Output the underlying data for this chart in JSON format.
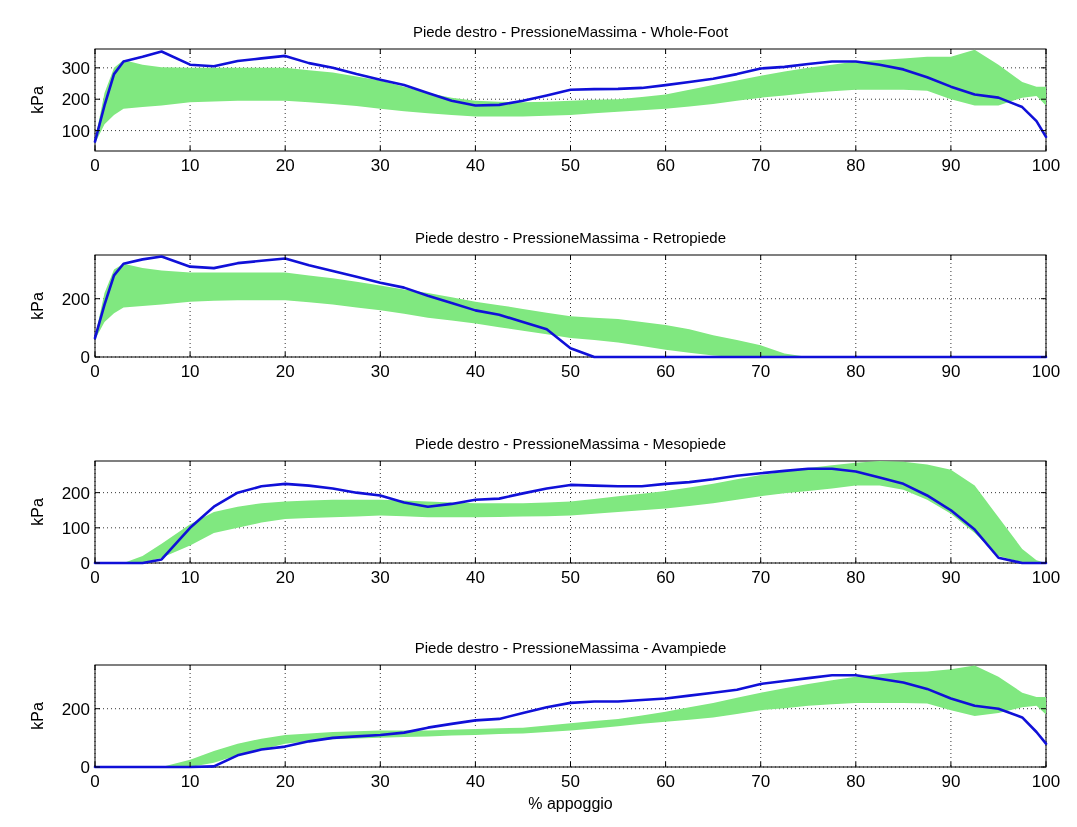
{
  "chart_data": [
    {
      "type": "line",
      "title": "Piede destro - PressioneMassima - Whole-Foot",
      "ylabel": "kPa",
      "xlim": [
        0,
        100
      ],
      "xticks": [
        0,
        10,
        20,
        30,
        40,
        50,
        60,
        70,
        80,
        90,
        100
      ],
      "ylim": [
        35,
        360
      ],
      "yticks": [
        100,
        200,
        300
      ],
      "grid": true,
      "x": [
        0,
        1,
        2,
        3,
        5,
        7,
        10,
        12.5,
        15,
        17.5,
        20,
        22.5,
        25,
        27.5,
        30,
        32.5,
        35,
        37.5,
        40,
        42.5,
        45,
        47.5,
        50,
        52.5,
        55,
        57.5,
        60,
        62.5,
        65,
        67.5,
        70,
        72.5,
        75,
        77.5,
        80,
        82.5,
        85,
        87.5,
        90,
        92.5,
        95,
        97.5,
        99,
        100
      ],
      "series": [
        {
          "color": "#1010d8",
          "values": [
            65,
            180,
            280,
            320,
            335,
            352,
            310,
            305,
            322,
            330,
            338,
            315,
            300,
            280,
            262,
            245,
            220,
            195,
            180,
            182,
            195,
            212,
            230,
            232,
            233,
            236,
            245,
            255,
            265,
            280,
            298,
            303,
            312,
            320,
            320,
            310,
            295,
            270,
            240,
            215,
            205,
            175,
            130,
            80
          ],
          "lower": [
            60,
            120,
            150,
            170,
            175,
            180,
            190,
            193,
            195,
            195,
            195,
            190,
            185,
            178,
            170,
            162,
            155,
            150,
            145,
            145,
            145,
            147,
            150,
            155,
            160,
            165,
            170,
            177,
            185,
            195,
            205,
            212,
            220,
            225,
            230,
            230,
            230,
            227,
            200,
            180,
            180,
            205,
            210,
            180
          ],
          "upper": [
            70,
            220,
            300,
            325,
            310,
            302,
            300,
            300,
            300,
            300,
            300,
            292,
            285,
            272,
            260,
            240,
            220,
            205,
            195,
            192,
            190,
            192,
            195,
            198,
            200,
            207,
            215,
            230,
            245,
            260,
            275,
            288,
            300,
            310,
            320,
            325,
            330,
            335,
            335,
            358,
            310,
            255,
            240,
            240
          ]
        }
      ]
    },
    {
      "type": "line",
      "title": "Piede destro - PressioneMassima - Retropiede",
      "ylabel": "kPa",
      "xlim": [
        0,
        100
      ],
      "xticks": [
        0,
        10,
        20,
        30,
        40,
        50,
        60,
        70,
        80,
        90,
        100
      ],
      "ylim": [
        0,
        350
      ],
      "yticks": [
        0,
        200
      ],
      "grid": true,
      "x": [
        0,
        1,
        2,
        3,
        5,
        7,
        10,
        12.5,
        15,
        17.5,
        20,
        22.5,
        25,
        27.5,
        30,
        32.5,
        35,
        37.5,
        40,
        42.5,
        45,
        47.5,
        50,
        52.5,
        55,
        57.5,
        60,
        62.5,
        65,
        67.5,
        70,
        72.5,
        75,
        77.5,
        80,
        82.5,
        85,
        87.5,
        90,
        92.5,
        95,
        97.5,
        99,
        100
      ],
      "series": [
        {
          "color": "#1010d8",
          "values": [
            65,
            180,
            280,
            320,
            335,
            345,
            310,
            305,
            322,
            330,
            338,
            315,
            295,
            275,
            255,
            238,
            210,
            185,
            160,
            145,
            120,
            95,
            30,
            0,
            0,
            0,
            0,
            0,
            0,
            0,
            0,
            0,
            0,
            0,
            0,
            0,
            0,
            0,
            0,
            0,
            0,
            0,
            0,
            0
          ],
          "lower": [
            60,
            120,
            150,
            170,
            175,
            180,
            190,
            193,
            195,
            195,
            195,
            188,
            180,
            170,
            160,
            148,
            135,
            125,
            115,
            102,
            90,
            78,
            65,
            58,
            50,
            38,
            25,
            15,
            5,
            0,
            0,
            0,
            0,
            0,
            0,
            0,
            0,
            0,
            0,
            0,
            0,
            0,
            0,
            0
          ],
          "upper": [
            70,
            220,
            300,
            320,
            305,
            297,
            290,
            290,
            290,
            290,
            290,
            280,
            270,
            258,
            245,
            232,
            220,
            205,
            190,
            178,
            165,
            152,
            140,
            135,
            130,
            120,
            110,
            95,
            75,
            58,
            40,
            12,
            0,
            0,
            0,
            0,
            0,
            0,
            0,
            0,
            0,
            0,
            0,
            0
          ]
        }
      ]
    },
    {
      "type": "line",
      "title": "Piede destro - PressioneMassima - Mesopiede",
      "ylabel": "kPa",
      "xlim": [
        0,
        100
      ],
      "xticks": [
        0,
        10,
        20,
        30,
        40,
        50,
        60,
        70,
        80,
        90,
        100
      ],
      "ylim": [
        0,
        290
      ],
      "yticks": [
        0,
        100,
        200
      ],
      "grid": true,
      "x": [
        0,
        1,
        2,
        3,
        5,
        7,
        10,
        12.5,
        15,
        17.5,
        20,
        22.5,
        25,
        27.5,
        30,
        32.5,
        35,
        37.5,
        40,
        42.5,
        45,
        47.5,
        50,
        52.5,
        55,
        57.5,
        60,
        62.5,
        65,
        67.5,
        70,
        72.5,
        75,
        77.5,
        80,
        82.5,
        85,
        87.5,
        90,
        92.5,
        95,
        97.5,
        99,
        100
      ],
      "series": [
        {
          "color": "#1010d8",
          "values": [
            0,
            0,
            0,
            0,
            0,
            10,
            100,
            160,
            200,
            218,
            225,
            220,
            212,
            200,
            192,
            172,
            160,
            168,
            180,
            183,
            198,
            212,
            222,
            220,
            218,
            218,
            225,
            230,
            238,
            248,
            255,
            262,
            268,
            268,
            260,
            243,
            225,
            192,
            150,
            95,
            15,
            0,
            0,
            0
          ],
          "lower": [
            0,
            0,
            0,
            0,
            0,
            15,
            50,
            85,
            100,
            115,
            125,
            128,
            130,
            132,
            135,
            133,
            130,
            130,
            130,
            131,
            132,
            133,
            135,
            140,
            145,
            150,
            155,
            162,
            170,
            180,
            190,
            198,
            205,
            212,
            220,
            220,
            208,
            180,
            140,
            85,
            20,
            2,
            0,
            0
          ],
          "upper": [
            0,
            0,
            0,
            0,
            20,
            55,
            110,
            145,
            160,
            170,
            175,
            178,
            180,
            180,
            180,
            178,
            175,
            172,
            170,
            170,
            170,
            172,
            175,
            182,
            190,
            197,
            205,
            215,
            225,
            238,
            250,
            260,
            270,
            278,
            285,
            290,
            288,
            280,
            265,
            220,
            130,
            40,
            8,
            0
          ]
        }
      ]
    },
    {
      "type": "line",
      "title": "Piede destro - PressioneMassima - Avampiede",
      "xlabel": "% appoggio",
      "ylabel": "kPa",
      "xlim": [
        0,
        100
      ],
      "xticks": [
        0,
        10,
        20,
        30,
        40,
        50,
        60,
        70,
        80,
        90,
        100
      ],
      "ylim": [
        0,
        350
      ],
      "yticks": [
        0,
        200
      ],
      "grid": true,
      "x": [
        0,
        1,
        2,
        3,
        5,
        7,
        10,
        12.5,
        15,
        17.5,
        20,
        22.5,
        25,
        27.5,
        30,
        32.5,
        35,
        37.5,
        40,
        42.5,
        45,
        47.5,
        50,
        52.5,
        55,
        57.5,
        60,
        62.5,
        65,
        67.5,
        70,
        72.5,
        75,
        77.5,
        80,
        82.5,
        85,
        87.5,
        90,
        92.5,
        95,
        97.5,
        99,
        100
      ],
      "series": [
        {
          "color": "#1010d8",
          "values": [
            0,
            0,
            0,
            0,
            0,
            0,
            0,
            2,
            40,
            60,
            70,
            88,
            100,
            105,
            110,
            118,
            135,
            148,
            160,
            165,
            185,
            205,
            220,
            225,
            225,
            230,
            235,
            245,
            255,
            265,
            285,
            295,
            305,
            315,
            315,
            303,
            290,
            268,
            235,
            210,
            200,
            170,
            120,
            80
          ],
          "lower": [
            0,
            0,
            0,
            0,
            0,
            0,
            0,
            15,
            40,
            60,
            80,
            88,
            95,
            98,
            100,
            103,
            105,
            108,
            110,
            113,
            115,
            120,
            125,
            132,
            140,
            148,
            155,
            162,
            170,
            182,
            195,
            202,
            210,
            215,
            220,
            220,
            220,
            218,
            195,
            175,
            185,
            205,
            210,
            180
          ],
          "upper": [
            0,
            0,
            0,
            0,
            0,
            0,
            25,
            55,
            80,
            97,
            110,
            115,
            120,
            123,
            125,
            125,
            125,
            128,
            130,
            133,
            135,
            142,
            150,
            158,
            165,
            177,
            190,
            205,
            220,
            238,
            255,
            270,
            285,
            298,
            310,
            318,
            325,
            328,
            335,
            348,
            310,
            255,
            240,
            240
          ]
        }
      ]
    }
  ]
}
